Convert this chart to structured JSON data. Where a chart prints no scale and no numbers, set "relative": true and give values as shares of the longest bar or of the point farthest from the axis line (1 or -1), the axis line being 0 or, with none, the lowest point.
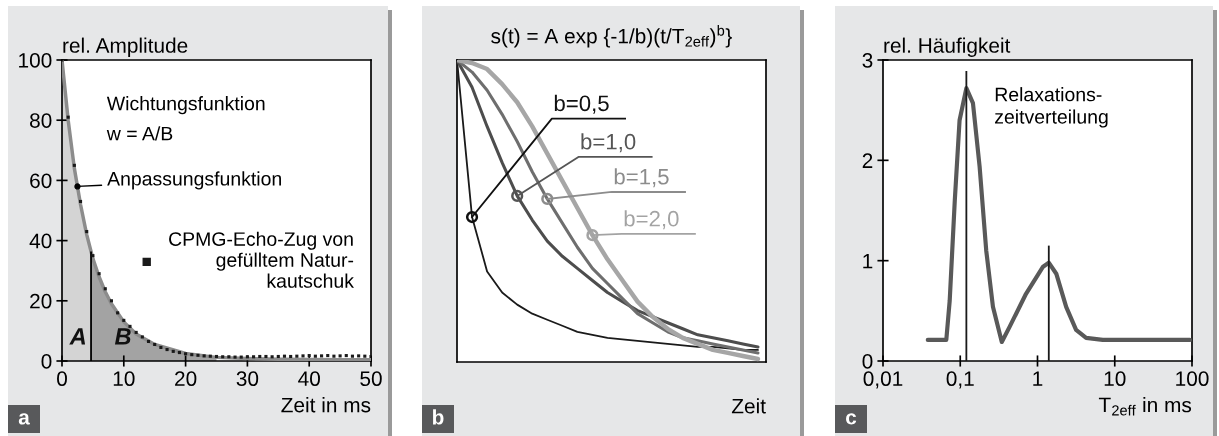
{
  "chart_data": [
    {
      "type": "line",
      "ylabel": "rel. Amplitude",
      "xlabel": "Zeit in ms",
      "xlim": [
        0,
        50
      ],
      "xticks": [
        0,
        10,
        20,
        30,
        40,
        50
      ],
      "ylim": [
        0,
        100
      ],
      "yticks": [
        0,
        20,
        40,
        60,
        80,
        100
      ],
      "grid": false,
      "legend": "right",
      "series": [
        {
          "type": "area",
          "color": "#d4d4d4",
          "x": [
            0,
            1,
            2,
            3,
            4,
            4.7
          ],
          "values": [
            100,
            80,
            64,
            52,
            42,
            36
          ]
        },
        {
          "type": "area",
          "color": "#a3a3a3",
          "x": [
            4.7,
            5,
            6,
            7,
            8,
            10,
            12,
            15,
            20,
            25
          ],
          "values": [
            36,
            34,
            28,
            23,
            19,
            13,
            9,
            5.5,
            2.5,
            1.2
          ]
        },
        {
          "type": "line",
          "color": "#8c8c8c",
          "x": [
            0,
            1,
            2,
            3,
            4,
            5,
            6,
            7,
            8,
            10,
            12,
            15,
            20,
            25,
            30,
            35,
            40,
            45,
            50
          ],
          "values": [
            100,
            80,
            64,
            52,
            42,
            34,
            28,
            23,
            19,
            13,
            9,
            5.5,
            2.5,
            1.2,
            0.8,
            0.6,
            0.5,
            0.4,
            0.4
          ]
        },
        {
          "type": "scatter",
          "name": "CPMG-Echo-Zug von\ngefülltem Natur-\nkautschuk",
          "color": "#1a1a1a",
          "marker": "square",
          "x": [
            0,
            1,
            2,
            3,
            4,
            5,
            6,
            7,
            8,
            9,
            10,
            11,
            12,
            13,
            14,
            15,
            16,
            17,
            18,
            19,
            20,
            21,
            22,
            23,
            24,
            25,
            26,
            27,
            28,
            29,
            30,
            31,
            32,
            33,
            34,
            35,
            36,
            37,
            38,
            39,
            40,
            41,
            42,
            43,
            44,
            45,
            46,
            47,
            48,
            49,
            50
          ],
          "values": [
            100,
            81,
            65,
            53,
            43,
            35,
            29,
            24,
            20,
            16,
            13.5,
            11.5,
            9.5,
            8,
            6.5,
            5.5,
            4.5,
            3.8,
            3.2,
            2.8,
            2.4,
            2.1,
            1.9,
            1.7,
            1.6,
            1.5,
            1.4,
            1.4,
            1.3,
            1.3,
            1.4,
            1.4,
            1.5,
            1.5,
            1.4,
            1.5,
            1.6,
            1.5,
            1.6,
            1.7,
            1.8,
            1.6,
            1.7,
            1.8,
            1.6,
            1.7,
            1.8,
            1.6,
            1.7,
            1.6,
            1.5
          ]
        }
      ],
      "ref_lines": [
        {
          "axis": "x",
          "value": 4.7,
          "color": "#000000"
        }
      ],
      "annotations": [
        "Wichtungsfunktion",
        "w = A/B",
        {
          "text": "Anpassungsfunktion",
          "x": 2.5,
          "y": 58
        },
        "A",
        "B",
        "a"
      ]
    },
    {
      "type": "line",
      "title": "s(t) = A exp {-1/b)(t/T$_{2eff}$)$^{b}$}",
      "xlabel": "Zeit",
      "relative": true,
      "legend": false,
      "categories": [
        null,
        null,
        null,
        null,
        null,
        null,
        null,
        null,
        null,
        null,
        null,
        null,
        null,
        null,
        null,
        null,
        null,
        null,
        null,
        null,
        null
      ],
      "series": [
        {
          "name": "b=0,5",
          "color": "#1a1a1a",
          "values": [
            1,
            0.48,
            0.3,
            0.23,
            0.19,
            0.16,
            0.14,
            0.12,
            0.1,
            0.09,
            0.08,
            0.075,
            0.07,
            0.065,
            0.06,
            0.055,
            0.05,
            0.05,
            0.045,
            0.04,
            0.04
          ]
        },
        {
          "name": "b=1,0",
          "color": "#4d4d4d",
          "values": [
            1,
            0.91,
            0.78,
            0.66,
            0.55,
            0.47,
            0.4,
            0.35,
            0.31,
            0.27,
            0.23,
            0.2,
            0.17,
            0.15,
            0.13,
            0.11,
            0.09,
            0.08,
            0.07,
            0.06,
            0.05
          ]
        },
        {
          "name": "b=1,5",
          "color": "#6e6e6e",
          "values": [
            1,
            0.96,
            0.9,
            0.82,
            0.73,
            0.63,
            0.54,
            0.46,
            0.38,
            0.31,
            0.26,
            0.21,
            0.16,
            0.13,
            0.1,
            0.08,
            0.07,
            0.06,
            0.05,
            0.04,
            0.03
          ]
        },
        {
          "name": "b=2,0",
          "color": "#a6a6a6",
          "values": [
            1,
            0.99,
            0.97,
            0.92,
            0.86,
            0.78,
            0.69,
            0.6,
            0.51,
            0.42,
            0.34,
            0.27,
            0.2,
            0.15,
            0.11,
            0.08,
            0.06,
            0.04,
            0.03,
            0.02,
            0.01
          ]
        }
      ],
      "annotations": [
        "b"
      ]
    },
    {
      "type": "line",
      "ylabel": "rel. Häufigkeit",
      "xlabel": "T$_{2eff}$ in ms",
      "log": "x",
      "xlim": [
        0.01,
        100
      ],
      "xticks": [
        {
          "value": 0.01,
          "label": "0,01"
        },
        {
          "value": 0.1,
          "label": "0,1"
        },
        1,
        10,
        100
      ],
      "ylim": [
        0,
        3
      ],
      "yticks": [
        0,
        1,
        2,
        3
      ],
      "grid": false,
      "series": [
        {
          "color": "#595959",
          "x": [
            0.038,
            0.066,
            0.073,
            0.085,
            0.098,
            0.12,
            0.146,
            0.178,
            0.217,
            0.265,
            0.345,
            0.435,
            0.71,
            1.18,
            1.4,
            1.75,
            2.35,
            3.16,
            4.26,
            7.0,
            94
          ],
          "values": [
            0.21,
            0.21,
            0.6,
            1.6,
            2.4,
            2.72,
            2.57,
            1.94,
            1.1,
            0.54,
            0.19,
            0.34,
            0.67,
            0.94,
            0.98,
            0.87,
            0.54,
            0.31,
            0.23,
            0.21,
            0.21
          ]
        }
      ],
      "ref_lines": [
        {
          "axis": "x",
          "value": 0.12,
          "color": "#1a1a1a"
        },
        {
          "axis": "x",
          "value": 1.4,
          "color": "#1a1a1a"
        }
      ],
      "annotations": [
        "Relaxations-\nzeitverteilung",
        "c"
      ]
    }
  ]
}
